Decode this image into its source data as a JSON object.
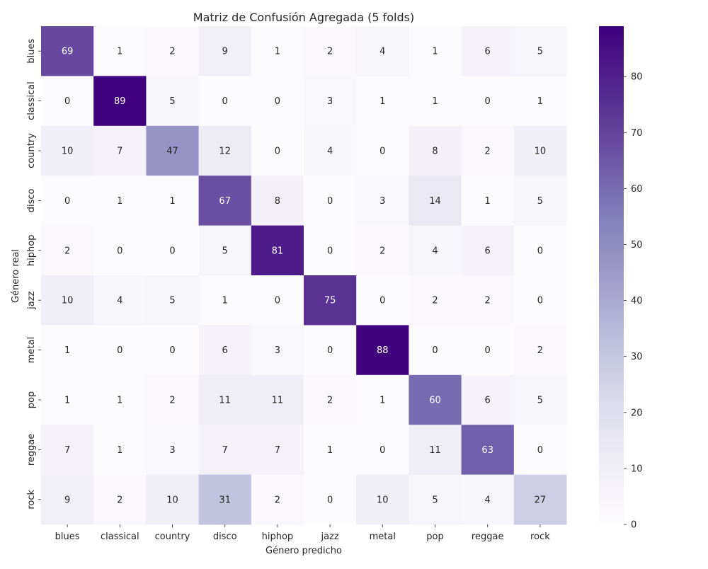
{
  "chart_data": {
    "type": "heatmap",
    "title": "Matriz de Confusión Agregada (5 folds)",
    "xlabel": "Género predicho",
    "ylabel": "Género real",
    "x_categories": [
      "blues",
      "classical",
      "country",
      "disco",
      "hiphop",
      "jazz",
      "metal",
      "pop",
      "reggae",
      "rock"
    ],
    "y_categories": [
      "blues",
      "classical",
      "country",
      "disco",
      "hiphop",
      "jazz",
      "metal",
      "pop",
      "reggae",
      "rock"
    ],
    "values": [
      [
        69,
        1,
        2,
        9,
        1,
        2,
        4,
        1,
        6,
        5
      ],
      [
        0,
        89,
        5,
        0,
        0,
        3,
        1,
        1,
        0,
        1
      ],
      [
        10,
        7,
        47,
        12,
        0,
        4,
        0,
        8,
        2,
        10
      ],
      [
        0,
        1,
        1,
        67,
        8,
        0,
        3,
        14,
        1,
        5
      ],
      [
        2,
        0,
        0,
        5,
        81,
        0,
        2,
        4,
        6,
        0
      ],
      [
        10,
        4,
        5,
        1,
        0,
        75,
        0,
        2,
        2,
        0
      ],
      [
        1,
        0,
        0,
        6,
        3,
        0,
        88,
        0,
        0,
        2
      ],
      [
        1,
        1,
        2,
        11,
        11,
        2,
        1,
        60,
        6,
        5
      ],
      [
        7,
        1,
        3,
        7,
        7,
        1,
        0,
        11,
        63,
        0
      ],
      [
        9,
        2,
        10,
        31,
        2,
        0,
        10,
        5,
        4,
        27
      ]
    ],
    "colormap": "Purples",
    "vmin": 0,
    "vmax": 89,
    "colorbar_ticks": [
      0,
      10,
      20,
      30,
      40,
      50,
      60,
      70,
      80
    ],
    "annotations": true,
    "grid": false
  }
}
